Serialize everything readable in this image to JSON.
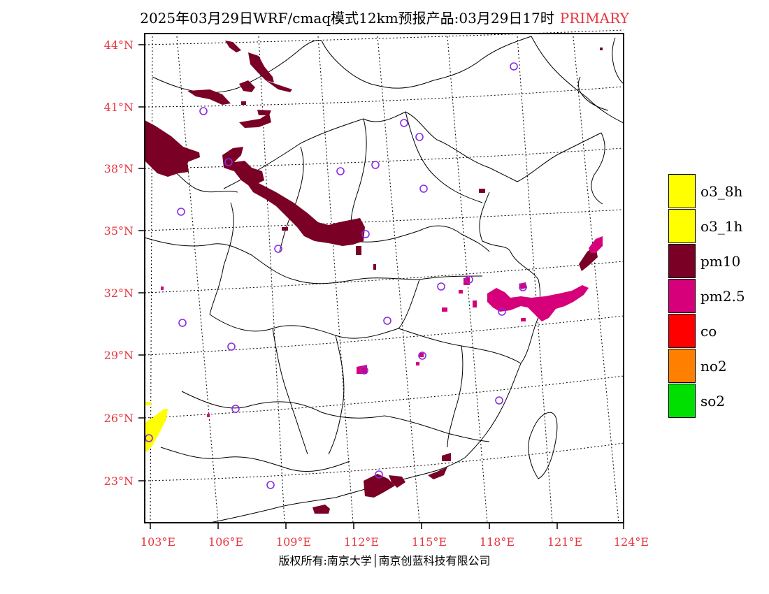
{
  "title": {
    "main": "2025年03月29日WRF/cmaq模式12km预报产品:03月29日17时",
    "tag": "PRIMARY"
  },
  "axes": {
    "lat_labels": [
      "44°N",
      "41°N",
      "38°N",
      "35°N",
      "32°N",
      "29°N",
      "26°N",
      "23°N"
    ],
    "lon_labels": [
      "103°E",
      "106°E",
      "109°E",
      "112°E",
      "115°E",
      "118°E",
      "121°E",
      "124°E"
    ],
    "label_color": "#e8363f"
  },
  "legend": [
    {
      "label": "o3_8h",
      "color": "#ffff00"
    },
    {
      "label": "o3_1h",
      "color": "#ffff00"
    },
    {
      "label": "pm10",
      "color": "#7a0026"
    },
    {
      "label": "pm2.5",
      "color": "#d5007a"
    },
    {
      "label": "co",
      "color": "#ff0000"
    },
    {
      "label": "no2",
      "color": "#ff8000"
    },
    {
      "label": "so2",
      "color": "#00e000"
    }
  ],
  "station_marker_color": "#8a2be2",
  "copyright": "版权所有:南京大学│南京创蓝科技有限公司"
}
